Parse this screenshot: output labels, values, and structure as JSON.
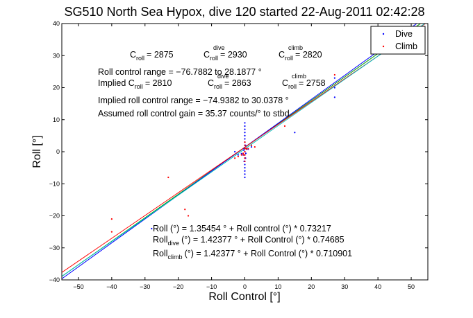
{
  "chart_data": {
    "type": "scatter",
    "title": "SG510 North Sea Hypox, dive 120 started 22-Aug-2011 02:42:28",
    "xlabel": "Roll Control [°]",
    "ylabel": "Roll [°]",
    "xlim": [
      -55,
      55
    ],
    "ylim": [
      -40,
      40
    ],
    "xticks": [
      -50,
      -40,
      -30,
      -20,
      -10,
      0,
      10,
      20,
      30,
      40,
      50
    ],
    "yticks": [
      -40,
      -30,
      -20,
      -10,
      0,
      10,
      20,
      30,
      40
    ],
    "xtick_labels": [
      "−50",
      "−40",
      "−30",
      "−20",
      "−10",
      "0",
      "10",
      "20",
      "30",
      "40",
      "50"
    ],
    "ytick_labels": [
      "−40",
      "−30",
      "−20",
      "−10",
      "0",
      "10",
      "20",
      "30",
      "40"
    ],
    "grid": false,
    "legend_position": "top-right",
    "series": [
      {
        "name": "Dive",
        "color": "#0000ff",
        "points": [
          [
            0,
            -8
          ],
          [
            0,
            -7
          ],
          [
            0,
            -6
          ],
          [
            0,
            -5
          ],
          [
            0,
            -4
          ],
          [
            0,
            -3
          ],
          [
            0,
            -2
          ],
          [
            0,
            -1
          ],
          [
            0,
            0
          ],
          [
            0,
            1
          ],
          [
            0,
            2
          ],
          [
            0,
            3
          ],
          [
            0,
            4
          ],
          [
            0,
            5
          ],
          [
            0,
            6
          ],
          [
            0,
            7
          ],
          [
            0,
            8
          ],
          [
            0,
            9
          ],
          [
            -0.2,
            -3
          ],
          [
            0.2,
            -2
          ],
          [
            -0.2,
            1
          ],
          [
            0.2,
            2
          ],
          [
            -0.3,
            0.5
          ],
          [
            0.3,
            -0.5
          ],
          [
            0.5,
            1
          ],
          [
            -0.5,
            -1
          ],
          [
            1,
            0.8
          ],
          [
            -1,
            -0.6
          ],
          [
            2,
            1.5
          ],
          [
            -2,
            -1
          ],
          [
            -3,
            0
          ],
          [
            15,
            6
          ],
          [
            27,
            17
          ],
          [
            27,
            20
          ],
          [
            27,
            23
          ],
          [
            -28,
            -24
          ]
        ]
      },
      {
        "name": "Climb",
        "color": "#ff0000",
        "points": [
          [
            0,
            -3
          ],
          [
            0,
            -2
          ],
          [
            0,
            -1
          ],
          [
            0,
            0
          ],
          [
            0,
            1
          ],
          [
            0,
            2
          ],
          [
            0,
            3
          ],
          [
            -0.3,
            -1
          ],
          [
            0.3,
            1
          ],
          [
            -0.5,
            -0.5
          ],
          [
            0.5,
            0.8
          ],
          [
            -1,
            -1
          ],
          [
            1,
            1
          ],
          [
            -2,
            -1.5
          ],
          [
            2,
            2
          ],
          [
            -3,
            -2
          ],
          [
            3,
            1.5
          ],
          [
            -40,
            -21
          ],
          [
            -40,
            -25
          ],
          [
            -23,
            -8
          ],
          [
            -18,
            -18
          ],
          [
            -17,
            -20
          ],
          [
            12,
            8
          ],
          [
            27,
            24
          ]
        ]
      }
    ],
    "fit_lines": [
      {
        "slope": 0.73217,
        "intercept": 1.35454,
        "color": "#00a000"
      },
      {
        "slope": 0.74685,
        "intercept": 1.42377,
        "color": "#0000ff"
      },
      {
        "slope": 0.710901,
        "intercept": 1.42377,
        "color": "#ff0000"
      },
      {
        "slope": 0.7232,
        "intercept": 0.9,
        "color": "#00bfbf"
      }
    ],
    "annotations": {
      "c_roll": "C",
      "c_roll_sub": "roll",
      "c_roll_value": "= 2875",
      "c_dive": "C",
      "c_dive_sup": "dive",
      "c_dive_sub": "roll",
      "c_dive_value": "= 2930",
      "c_climb": "C",
      "c_climb_sup": "climb",
      "c_climb_sub": "roll",
      "c_climb_value": "= 2820",
      "roll_control_range": "Roll control range = −76.7882 to 28.1877 °",
      "implied_prefix": "Implied C",
      "implied_sub": "roll",
      "implied_value": "= 2810",
      "implied_dive": "C",
      "implied_dive_sup": "dive",
      "implied_dive_sub": "roll",
      "implied_dive_value": "= 2863",
      "implied_climb": "C",
      "implied_climb_sup": "climb",
      "implied_climb_sub": "roll",
      "implied_climb_value": "= 2758",
      "implied_range": "Implied roll control range = −74.9382 to 30.0378 °",
      "assumed_gain": "Assumed roll control gain = 35.37 counts/° to stbd",
      "eq1": "Roll (°) = 1.35454 ° + Roll control (°) * 0.73217",
      "eq2_prefix": "Roll",
      "eq2_sub": "dive",
      "eq2_rest": "(°) = 1.42377 ° + Roll Control (°) * 0.74685",
      "eq3_prefix": "Roll",
      "eq3_sub": "climb",
      "eq3_rest": "(°) = 1.42377 ° + Roll Control (°) * 0.710901"
    }
  }
}
